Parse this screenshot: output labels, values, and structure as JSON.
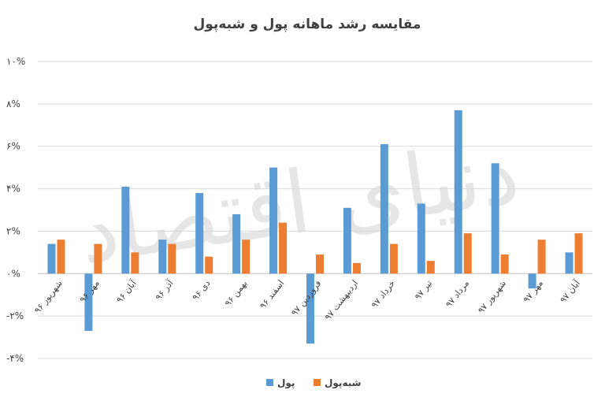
{
  "chart_data": {
    "type": "bar",
    "title": "مقایسه رشد ماهانه پول و شبه‌پول",
    "watermark": "دنیای اقتصاد",
    "categories": [
      "شهریور ۹۶",
      "مهر ۹۶",
      "آبان ۹۶",
      "آذر ۹۶",
      "دی ۹۶",
      "بهمن ۹۶",
      "اسفند ۹۶",
      "فروردین ۹۷",
      "اردیبهشت ۹۷",
      "خرداد ۹۷",
      "تیر ۹۷",
      "مرداد ۹۷",
      "شهریور ۹۷",
      "مهر ۹۷",
      "آبان ۹۷"
    ],
    "series": [
      {
        "name": "پول",
        "color": "#5b9bd5",
        "values": [
          1.4,
          -2.7,
          4.1,
          1.6,
          3.8,
          2.8,
          5.0,
          -3.3,
          3.1,
          6.1,
          3.3,
          7.7,
          5.2,
          -0.7,
          1.0
        ]
      },
      {
        "name": "شبه‌پول",
        "color": "#ed7d31",
        "values": [
          1.6,
          1.4,
          1.0,
          1.4,
          0.8,
          1.6,
          2.4,
          0.9,
          0.5,
          1.4,
          0.6,
          1.9,
          0.9,
          1.6,
          1.9
        ]
      }
    ],
    "y_ticks": [
      {
        "value": 10,
        "label": "۱۰%"
      },
      {
        "value": 8,
        "label": "۸%"
      },
      {
        "value": 6,
        "label": "۶%"
      },
      {
        "value": 4,
        "label": "۴%"
      },
      {
        "value": 2,
        "label": "۲%"
      },
      {
        "value": 0,
        "label": "۰%"
      },
      {
        "value": -2,
        "label": "-۲%"
      },
      {
        "value": -4,
        "label": "-۴%"
      }
    ],
    "ylim": [
      -4,
      10
    ],
    "grid": true,
    "legend_position": "bottom"
  }
}
